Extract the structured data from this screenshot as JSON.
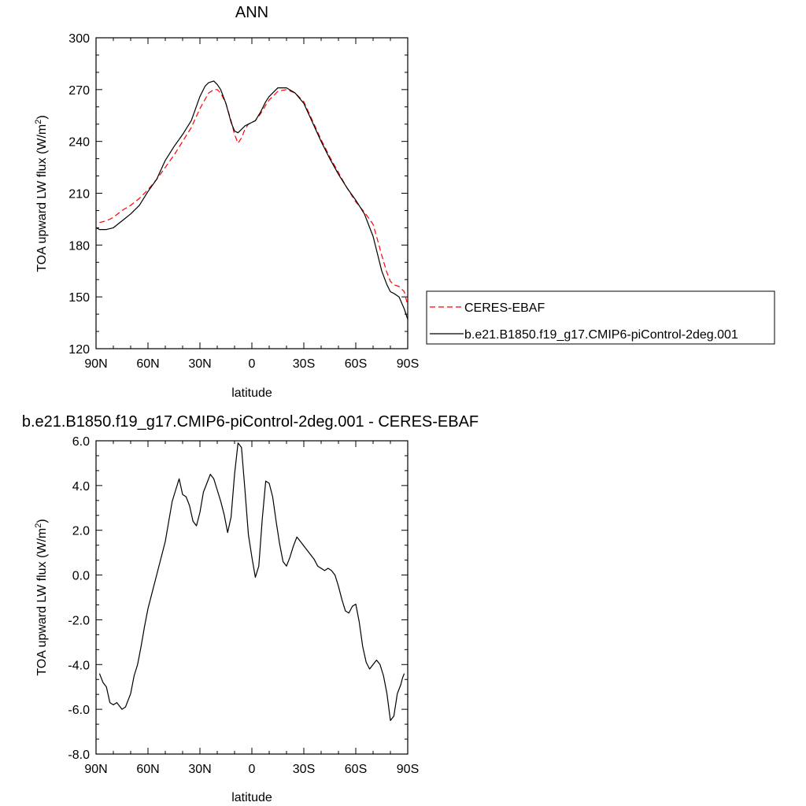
{
  "chart_data": [
    {
      "type": "line",
      "title": "ANN",
      "xlabel": "latitude",
      "ylabel": "TOA upward LW flux (W/m",
      "ylabel_sup": "2",
      "ylabel_tail": ")",
      "xlim": [
        90,
        -90
      ],
      "ylim": [
        120,
        300
      ],
      "x_ticks": [
        {
          "value": 90,
          "label": "90N"
        },
        {
          "value": 60,
          "label": "60N"
        },
        {
          "value": 30,
          "label": "30N"
        },
        {
          "value": 0,
          "label": "0"
        },
        {
          "value": -30,
          "label": "30S"
        },
        {
          "value": -60,
          "label": "60S"
        },
        {
          "value": -90,
          "label": "90S"
        }
      ],
      "y_ticks": [
        {
          "value": 300,
          "label": "300"
        },
        {
          "value": 270,
          "label": "270"
        },
        {
          "value": 240,
          "label": "240"
        },
        {
          "value": 210,
          "label": "210"
        },
        {
          "value": 180,
          "label": "180"
        },
        {
          "value": 150,
          "label": "150"
        },
        {
          "value": 120,
          "label": "120"
        }
      ],
      "legend_position": "right",
      "series": [
        {
          "name": "CERES-EBAF",
          "color": "#ff0000",
          "dash": "dashed",
          "x": [
            88,
            84,
            80,
            75,
            70,
            65,
            60,
            55,
            50,
            45,
            40,
            35,
            30,
            25,
            22,
            20,
            18,
            15,
            12,
            10,
            8,
            6,
            4,
            2,
            0,
            -2,
            -5,
            -8,
            -10,
            -15,
            -20,
            -25,
            -30,
            -35,
            -40,
            -45,
            -50,
            -55,
            -60,
            -65,
            -70,
            -72,
            -75,
            -78,
            -80,
            -82,
            -85,
            -88,
            -90
          ],
          "y": [
            193,
            194,
            196,
            200,
            203,
            207,
            212,
            218,
            225,
            232,
            240,
            248,
            259,
            268,
            270,
            270,
            268,
            262,
            252,
            244,
            239,
            242,
            247,
            250,
            251,
            252,
            256,
            261,
            264,
            269,
            270,
            268,
            263,
            252,
            241,
            231,
            222,
            213,
            205,
            199,
            192,
            185,
            174,
            164,
            159,
            157,
            156,
            153,
            145
          ]
        },
        {
          "name": "b.e21.B1850.f19_g17.CMIP6-piControl-2deg.001",
          "color": "#000000",
          "dash": "solid",
          "x": [
            90,
            88,
            84,
            80,
            75,
            70,
            65,
            60,
            55,
            50,
            45,
            40,
            35,
            30,
            27,
            25,
            22,
            20,
            18,
            15,
            12,
            10,
            8,
            6,
            4,
            2,
            0,
            -2,
            -5,
            -8,
            -10,
            -15,
            -20,
            -25,
            -30,
            -35,
            -40,
            -45,
            -50,
            -55,
            -60,
            -65,
            -70,
            -72,
            -75,
            -78,
            -80,
            -82,
            -85,
            -88,
            -90
          ],
          "y": [
            190,
            189,
            189,
            190,
            194,
            198,
            203,
            211,
            218,
            229,
            237,
            244,
            252,
            266,
            272,
            274,
            275,
            273,
            270,
            262,
            251,
            246,
            245,
            247,
            249,
            250,
            251,
            252,
            257,
            263,
            266,
            271,
            271,
            268,
            262,
            251,
            240,
            230,
            221,
            213,
            206,
            198,
            185,
            177,
            165,
            157,
            153,
            152,
            150,
            143,
            137
          ]
        }
      ]
    },
    {
      "type": "line",
      "title": "b.e21.B1850.f19_g17.CMIP6-piControl-2deg.001 - CERES-EBAF",
      "xlabel": "latitude",
      "ylabel": "TOA upward LW flux (W/m",
      "ylabel_sup": "2",
      "ylabel_tail": ")",
      "xlim": [
        90,
        -90
      ],
      "ylim": [
        -8,
        6
      ],
      "x_ticks": [
        {
          "value": 90,
          "label": "90N"
        },
        {
          "value": 60,
          "label": "60N"
        },
        {
          "value": 30,
          "label": "30N"
        },
        {
          "value": 0,
          "label": "0"
        },
        {
          "value": -30,
          "label": "30S"
        },
        {
          "value": -60,
          "label": "60S"
        },
        {
          "value": -90,
          "label": "90S"
        }
      ],
      "y_ticks": [
        {
          "value": 6,
          "label": "6.0"
        },
        {
          "value": 4,
          "label": "4.0"
        },
        {
          "value": 2,
          "label": "2.0"
        },
        {
          "value": 0,
          "label": "0.0"
        },
        {
          "value": -2,
          "label": "-2.0"
        },
        {
          "value": -4,
          "label": "-4.0"
        },
        {
          "value": -6,
          "label": "-6.0"
        },
        {
          "value": -8,
          "label": "-8.0"
        }
      ],
      "series": [
        {
          "name": "",
          "color": "#000000",
          "dash": "solid",
          "x": [
            88,
            86,
            84,
            82,
            80,
            78,
            77,
            75,
            73,
            70,
            68,
            66,
            64,
            62,
            60,
            58,
            56,
            54,
            52,
            50,
            48,
            46,
            44,
            42,
            40,
            38,
            36,
            34,
            32,
            30,
            28,
            26,
            24,
            22,
            20,
            18,
            16,
            14,
            12,
            10,
            8,
            6,
            4,
            2,
            0,
            -2,
            -4,
            -6,
            -8,
            -10,
            -12,
            -14,
            -16,
            -18,
            -20,
            -22,
            -24,
            -26,
            -28,
            -30,
            -32,
            -34,
            -36,
            -38,
            -40,
            -42,
            -44,
            -46,
            -48,
            -50,
            -52,
            -54,
            -56,
            -58,
            -60,
            -62,
            -64,
            -66,
            -68,
            -70,
            -72,
            -74,
            -76,
            -78,
            -80,
            -82,
            -84,
            -86,
            -87,
            -88
          ],
          "y": [
            -4.4,
            -4.8,
            -5.0,
            -5.7,
            -5.8,
            -5.7,
            -5.8,
            -6.0,
            -5.9,
            -5.3,
            -4.5,
            -4.0,
            -3.2,
            -2.3,
            -1.5,
            -0.9,
            -0.3,
            0.3,
            0.9,
            1.5,
            2.4,
            3.3,
            3.8,
            4.3,
            3.6,
            3.5,
            3.1,
            2.4,
            2.2,
            2.8,
            3.7,
            4.1,
            4.5,
            4.3,
            3.8,
            3.3,
            2.7,
            1.9,
            2.6,
            4.5,
            5.9,
            5.7,
            3.8,
            1.8,
            0.8,
            -0.1,
            0.4,
            2.5,
            4.2,
            4.1,
            3.5,
            2.4,
            1.4,
            0.6,
            0.4,
            0.8,
            1.3,
            1.7,
            1.5,
            1.3,
            1.1,
            0.9,
            0.7,
            0.4,
            0.3,
            0.2,
            0.3,
            0.2,
            0.0,
            -0.5,
            -1.1,
            -1.6,
            -1.7,
            -1.4,
            -1.3,
            -2.1,
            -3.2,
            -3.9,
            -4.2,
            -4.0,
            -3.8,
            -4.0,
            -4.5,
            -5.3,
            -6.5,
            -6.3,
            -5.3,
            -4.9,
            -4.6,
            -4.4
          ]
        }
      ]
    }
  ]
}
